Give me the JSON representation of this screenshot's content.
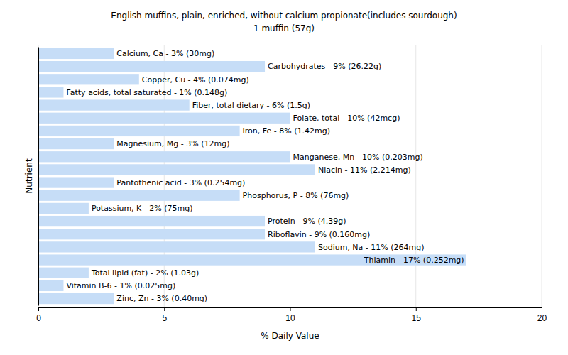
{
  "chart_data": {
    "type": "bar",
    "orientation": "horizontal",
    "title": "English muffins, plain, enriched, without calcium propionate(includes sourdough)",
    "subtitle": "1 muffin (57g)",
    "x_label": "% Daily Value",
    "y_label": "Nutrient",
    "categories": [
      "Calcium, Ca",
      "Carbohydrates",
      "Copper, Cu",
      "Fatty acids, total saturated",
      "Fiber, total dietary",
      "Folate, total",
      "Iron, Fe",
      "Magnesium, Mg",
      "Manganese, Mn",
      "Niacin",
      "Pantothenic acid",
      "Phosphorus, P",
      "Potassium, K",
      "Protein",
      "Riboflavin",
      "Sodium, Na",
      "Thiamin",
      "Total lipid (fat)",
      "Vitamin B-6",
      "Zinc, Zn"
    ],
    "values": [
      3,
      9,
      4,
      1,
      6,
      10,
      8,
      3,
      10,
      11,
      3,
      8,
      2,
      9,
      9,
      11,
      17,
      2,
      1,
      3
    ],
    "value_labels": [
      "Calcium, Ca - 3% (30mg)",
      "Carbohydrates - 9% (26.22g)",
      "Copper, Cu - 4% (0.074mg)",
      "Fatty acids, total saturated - 1% (0.148g)",
      "Fiber, total dietary - 6% (1.5g)",
      "Folate, total - 10% (42mcg)",
      "Iron, Fe - 8% (1.42mg)",
      "Magnesium, Mg - 3% (12mg)",
      "Manganese, Mn - 10% (0.203mg)",
      "Niacin - 11% (2.214mg)",
      "Pantothenic acid - 3% (0.254mg)",
      "Phosphorus, P - 8% (76mg)",
      "Potassium, K - 2% (75mg)",
      "Protein - 9% (4.39g)",
      "Riboflavin - 9% (0.160mg)",
      "Sodium, Na - 11% (264mg)",
      "Thiamin - 17% (0.252mg)",
      "Total lipid (fat) - 2% (1.03g)",
      "Vitamin B-6 - 1% (0.025mg)",
      "Zinc, Zn - 3% (0.40mg)"
    ],
    "data_labels": true,
    "color": "#c6ddf7",
    "xlim": [
      0,
      20
    ],
    "xticks": [
      0,
      5,
      10,
      15,
      20
    ],
    "grid": true,
    "tick_labels": "x"
  }
}
